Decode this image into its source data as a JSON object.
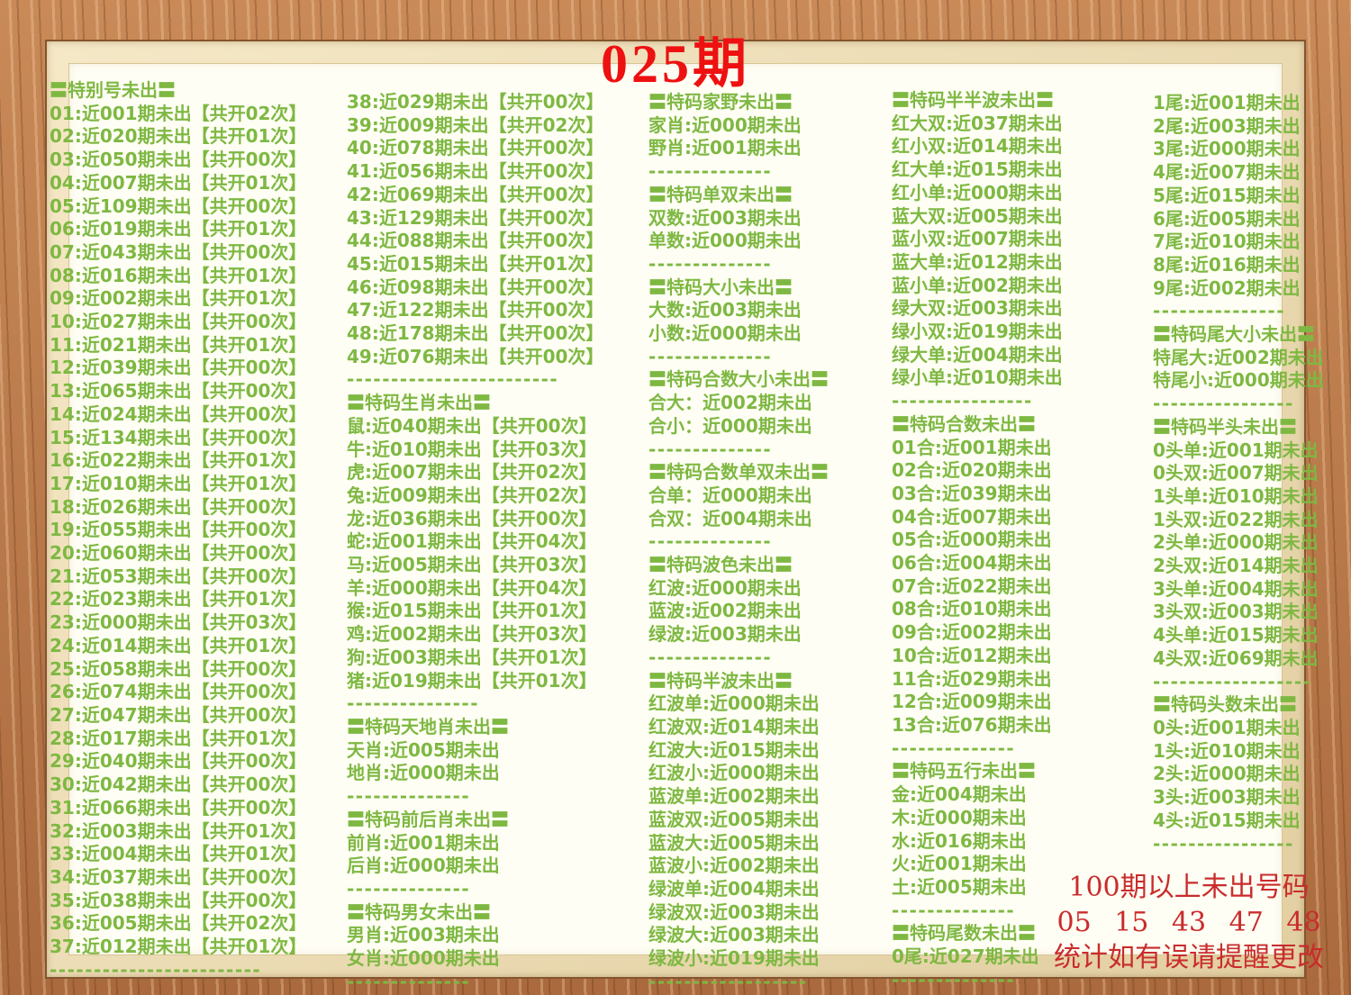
{
  "title": "025期",
  "colors": {
    "text_green": "#7eb842",
    "title_red": "#ee1111",
    "footer_red": "#c92c2c",
    "frame_wood": "#b57347",
    "mat_cream": "#eeddb4",
    "panel_bg": "#fffef4"
  },
  "footer": {
    "line1": "100期以上未出号码",
    "line2": "05 15 43 47 48",
    "line3": "统计如有误请提醒更改"
  },
  "columns": {
    "col1": {
      "lines": [
        {
          "t": "h",
          "s": "〓特别号未出〓"
        },
        {
          "t": "i",
          "s": "01:近001期未出【共开02次】"
        },
        {
          "t": "i",
          "s": "02:近020期未出【共开01次】"
        },
        {
          "t": "i",
          "s": "03:近050期未出【共开00次】"
        },
        {
          "t": "i",
          "s": "04:近007期未出【共开01次】"
        },
        {
          "t": "i",
          "s": "05:近109期未出【共开00次】"
        },
        {
          "t": "i",
          "s": "06:近019期未出【共开01次】"
        },
        {
          "t": "i",
          "s": "07:近043期未出【共开00次】"
        },
        {
          "t": "i",
          "s": "08:近016期未出【共开01次】"
        },
        {
          "t": "i",
          "s": "09:近002期未出【共开01次】"
        },
        {
          "t": "i",
          "s": "10:近027期未出【共开00次】"
        },
        {
          "t": "i",
          "s": "11:近021期未出【共开01次】"
        },
        {
          "t": "i",
          "s": "12:近039期未出【共开00次】"
        },
        {
          "t": "i",
          "s": "13:近065期未出【共开00次】"
        },
        {
          "t": "i",
          "s": "14:近024期未出【共开00次】"
        },
        {
          "t": "i",
          "s": "15:近134期未出【共开00次】"
        },
        {
          "t": "i",
          "s": "16:近022期未出【共开01次】"
        },
        {
          "t": "i",
          "s": "17:近010期未出【共开01次】"
        },
        {
          "t": "i",
          "s": "18:近026期未出【共开00次】"
        },
        {
          "t": "i",
          "s": "19:近055期未出【共开00次】"
        },
        {
          "t": "i",
          "s": "20:近060期未出【共开00次】"
        },
        {
          "t": "i",
          "s": "21:近053期未出【共开00次】"
        },
        {
          "t": "i",
          "s": "22:近023期未出【共开01次】"
        },
        {
          "t": "i",
          "s": "23:近000期未出【共开03次】"
        },
        {
          "t": "i",
          "s": "24:近014期未出【共开01次】"
        },
        {
          "t": "i",
          "s": "25:近058期未出【共开00次】"
        },
        {
          "t": "i",
          "s": "26:近074期未出【共开00次】"
        },
        {
          "t": "i",
          "s": "27:近047期未出【共开00次】"
        },
        {
          "t": "i",
          "s": "28:近017期未出【共开01次】"
        },
        {
          "t": "i",
          "s": "29:近040期未出【共开00次】"
        },
        {
          "t": "i",
          "s": "30:近042期未出【共开00次】"
        },
        {
          "t": "i",
          "s": "31:近066期未出【共开00次】"
        },
        {
          "t": "i",
          "s": "32:近003期未出【共开01次】"
        },
        {
          "t": "i",
          "s": "33:近004期未出【共开01次】"
        },
        {
          "t": "i",
          "s": "34:近037期未出【共开00次】"
        },
        {
          "t": "i",
          "s": "35:近038期未出【共开00次】"
        },
        {
          "t": "i",
          "s": "36:近005期未出【共开02次】"
        },
        {
          "t": "i",
          "s": "37:近012期未出【共开01次】"
        },
        {
          "t": "d",
          "s": "------------------------"
        }
      ]
    },
    "col2": {
      "lines": [
        {
          "t": "i",
          "s": "38:近029期未出【共开00次】"
        },
        {
          "t": "i",
          "s": "39:近009期未出【共开02次】"
        },
        {
          "t": "i",
          "s": "40:近078期未出【共开00次】"
        },
        {
          "t": "i",
          "s": "41:近056期未出【共开00次】"
        },
        {
          "t": "i",
          "s": "42:近069期未出【共开00次】"
        },
        {
          "t": "i",
          "s": "43:近129期未出【共开00次】"
        },
        {
          "t": "i",
          "s": "44:近088期未出【共开00次】"
        },
        {
          "t": "i",
          "s": "45:近015期未出【共开01次】"
        },
        {
          "t": "i",
          "s": "46:近098期未出【共开00次】"
        },
        {
          "t": "i",
          "s": "47:近122期未出【共开00次】"
        },
        {
          "t": "i",
          "s": "48:近178期未出【共开00次】"
        },
        {
          "t": "i",
          "s": "49:近076期未出【共开00次】"
        },
        {
          "t": "d",
          "s": "------------------------"
        },
        {
          "t": "h",
          "s": "〓特码生肖未出〓"
        },
        {
          "t": "i",
          "s": "鼠:近040期未出【共开00次】"
        },
        {
          "t": "i",
          "s": "牛:近010期未出【共开03次】"
        },
        {
          "t": "i",
          "s": "虎:近007期未出【共开02次】"
        },
        {
          "t": "i",
          "s": "兔:近009期未出【共开02次】"
        },
        {
          "t": "i",
          "s": "龙:近036期未出【共开00次】"
        },
        {
          "t": "i",
          "s": "蛇:近001期未出【共开04次】"
        },
        {
          "t": "i",
          "s": "马:近005期未出【共开03次】"
        },
        {
          "t": "i",
          "s": "羊:近000期未出【共开04次】"
        },
        {
          "t": "i",
          "s": "猴:近015期未出【共开01次】"
        },
        {
          "t": "i",
          "s": "鸡:近002期未出【共开03次】"
        },
        {
          "t": "i",
          "s": "狗:近003期未出【共开01次】"
        },
        {
          "t": "i",
          "s": "猪:近019期未出【共开01次】"
        },
        {
          "t": "d",
          "s": "---------------"
        },
        {
          "t": "h",
          "s": "〓特码天地肖未出〓"
        },
        {
          "t": "i",
          "s": "天肖:近005期未出"
        },
        {
          "t": "i",
          "s": "地肖:近000期未出"
        },
        {
          "t": "d",
          "s": "--------------"
        },
        {
          "t": "h",
          "s": "〓特码前后肖未出〓"
        },
        {
          "t": "i",
          "s": "前肖:近001期未出"
        },
        {
          "t": "i",
          "s": "后肖:近000期未出"
        },
        {
          "t": "d",
          "s": "--------------"
        },
        {
          "t": "h",
          "s": "〓特码男女未出〓"
        },
        {
          "t": "i",
          "s": "男肖:近003期未出"
        },
        {
          "t": "i",
          "s": "女肖:近000期未出"
        },
        {
          "t": "d",
          "s": "--------------"
        }
      ]
    },
    "col3": {
      "lines": [
        {
          "t": "h",
          "s": "〓特码家野未出〓"
        },
        {
          "t": "i",
          "s": "家肖:近000期未出"
        },
        {
          "t": "i",
          "s": "野肖:近001期未出"
        },
        {
          "t": "d",
          "s": "--------------"
        },
        {
          "t": "h",
          "s": "〓特码单双未出〓"
        },
        {
          "t": "i",
          "s": "双数:近003期未出"
        },
        {
          "t": "i",
          "s": "单数:近000期未出"
        },
        {
          "t": "d",
          "s": "--------------"
        },
        {
          "t": "h",
          "s": "〓特码大小未出〓"
        },
        {
          "t": "i",
          "s": "大数:近003期未出"
        },
        {
          "t": "i",
          "s": "小数:近000期未出"
        },
        {
          "t": "d",
          "s": "--------------"
        },
        {
          "t": "h",
          "s": "〓特码合数大小未出〓"
        },
        {
          "t": "i",
          "s": "合大：近002期未出"
        },
        {
          "t": "i",
          "s": "合小：近000期未出"
        },
        {
          "t": "d",
          "s": "--------------"
        },
        {
          "t": "h",
          "s": "〓特码合数单双未出〓"
        },
        {
          "t": "i",
          "s": "合单：近000期未出"
        },
        {
          "t": "i",
          "s": "合双：近004期未出"
        },
        {
          "t": "d",
          "s": "--------------"
        },
        {
          "t": "h",
          "s": "〓特码波色未出〓"
        },
        {
          "t": "i",
          "s": "红波:近000期未出"
        },
        {
          "t": "i",
          "s": "蓝波:近002期未出"
        },
        {
          "t": "i",
          "s": "绿波:近003期未出"
        },
        {
          "t": "d",
          "s": "--------------"
        },
        {
          "t": "h",
          "s": "〓特码半波未出〓"
        },
        {
          "t": "i",
          "s": "红波单:近000期未出"
        },
        {
          "t": "i",
          "s": "红波双:近014期未出"
        },
        {
          "t": "i",
          "s": "红波大:近015期未出"
        },
        {
          "t": "i",
          "s": "红波小:近000期未出"
        },
        {
          "t": "i",
          "s": "蓝波单:近002期未出"
        },
        {
          "t": "i",
          "s": "蓝波双:近005期未出"
        },
        {
          "t": "i",
          "s": "蓝波大:近005期未出"
        },
        {
          "t": "i",
          "s": "蓝波小:近002期未出"
        },
        {
          "t": "i",
          "s": "绿波单:近004期未出"
        },
        {
          "t": "i",
          "s": "绿波双:近003期未出"
        },
        {
          "t": "i",
          "s": "绿波大:近003期未出"
        },
        {
          "t": "i",
          "s": "绿波小:近019期未出"
        },
        {
          "t": "d",
          "s": "------------------"
        }
      ]
    },
    "col4": {
      "lines": [
        {
          "t": "h",
          "s": "〓特码半半波未出〓"
        },
        {
          "t": "i",
          "s": "红大双:近037期未出"
        },
        {
          "t": "i",
          "s": "红小双:近014期未出"
        },
        {
          "t": "i",
          "s": "红大单:近015期未出"
        },
        {
          "t": "i",
          "s": "红小单:近000期未出"
        },
        {
          "t": "i",
          "s": "蓝大双:近005期未出"
        },
        {
          "t": "i",
          "s": "蓝小双:近007期未出"
        },
        {
          "t": "i",
          "s": "蓝大单:近012期未出"
        },
        {
          "t": "i",
          "s": "蓝小单:近002期未出"
        },
        {
          "t": "i",
          "s": "绿大双:近003期未出"
        },
        {
          "t": "i",
          "s": "绿小双:近019期未出"
        },
        {
          "t": "i",
          "s": "绿大单:近004期未出"
        },
        {
          "t": "i",
          "s": "绿小单:近010期未出"
        },
        {
          "t": "d",
          "s": "----------------"
        },
        {
          "t": "h",
          "s": "〓特码合数未出〓"
        },
        {
          "t": "i",
          "s": "01合:近001期未出"
        },
        {
          "t": "i",
          "s": "02合:近020期未出"
        },
        {
          "t": "i",
          "s": "03合:近039期未出"
        },
        {
          "t": "i",
          "s": "04合:近007期未出"
        },
        {
          "t": "i",
          "s": "05合:近000期未出"
        },
        {
          "t": "i",
          "s": "06合:近004期未出"
        },
        {
          "t": "i",
          "s": "07合:近022期未出"
        },
        {
          "t": "i",
          "s": "08合:近010期未出"
        },
        {
          "t": "i",
          "s": "09合:近002期未出"
        },
        {
          "t": "i",
          "s": "10合:近012期未出"
        },
        {
          "t": "i",
          "s": "11合:近029期未出"
        },
        {
          "t": "i",
          "s": "12合:近009期未出"
        },
        {
          "t": "i",
          "s": "13合:近076期未出"
        },
        {
          "t": "d",
          "s": "--------------"
        },
        {
          "t": "h",
          "s": "〓特码五行未出〓"
        },
        {
          "t": "i",
          "s": "金:近004期未出"
        },
        {
          "t": "i",
          "s": "木:近000期未出"
        },
        {
          "t": "i",
          "s": "水:近016期未出"
        },
        {
          "t": "i",
          "s": "火:近001期未出"
        },
        {
          "t": "i",
          "s": "土:近005期未出"
        },
        {
          "t": "d",
          "s": "--------------"
        },
        {
          "t": "h",
          "s": "〓特码尾数未出〓"
        },
        {
          "t": "i",
          "s": "0尾:近027期未出"
        },
        {
          "t": "d",
          "s": "--------------"
        }
      ]
    },
    "col5": {
      "lines": [
        {
          "t": "i",
          "s": "1尾:近001期未出"
        },
        {
          "t": "i",
          "s": "2尾:近003期未出"
        },
        {
          "t": "i",
          "s": "3尾:近000期未出"
        },
        {
          "t": "i",
          "s": "4尾:近007期未出"
        },
        {
          "t": "i",
          "s": "5尾:近015期未出"
        },
        {
          "t": "i",
          "s": "6尾:近005期未出"
        },
        {
          "t": "i",
          "s": "7尾:近010期未出"
        },
        {
          "t": "i",
          "s": "8尾:近016期未出"
        },
        {
          "t": "i",
          "s": "9尾:近002期未出"
        },
        {
          "t": "d",
          "s": "---------------"
        },
        {
          "t": "h",
          "s": "〓特码尾大小未出〓"
        },
        {
          "t": "i",
          "s": "特尾大:近002期未出"
        },
        {
          "t": "i",
          "s": "特尾小:近000期未出"
        },
        {
          "t": "d",
          "s": "----------------"
        },
        {
          "t": "h",
          "s": "〓特码半头未出〓"
        },
        {
          "t": "i",
          "s": "0头单:近001期未出"
        },
        {
          "t": "i",
          "s": "0头双:近007期未出"
        },
        {
          "t": "i",
          "s": "1头单:近010期未出"
        },
        {
          "t": "i",
          "s": "1头双:近022期未出"
        },
        {
          "t": "i",
          "s": "2头单:近000期未出"
        },
        {
          "t": "i",
          "s": "2头双:近014期未出"
        },
        {
          "t": "i",
          "s": "3头单:近004期未出"
        },
        {
          "t": "i",
          "s": "3头双:近003期未出"
        },
        {
          "t": "i",
          "s": "4头单:近015期未出"
        },
        {
          "t": "i",
          "s": "4头双:近069期未出"
        },
        {
          "t": "d",
          "s": "------------------"
        },
        {
          "t": "h",
          "s": "〓特码头数未出〓"
        },
        {
          "t": "i",
          "s": "0头:近001期未出"
        },
        {
          "t": "i",
          "s": "1头:近010期未出"
        },
        {
          "t": "i",
          "s": "2头:近000期未出"
        },
        {
          "t": "i",
          "s": "3头:近003期未出"
        },
        {
          "t": "i",
          "s": "4头:近015期未出"
        },
        {
          "t": "d",
          "s": "----------------"
        }
      ]
    }
  }
}
